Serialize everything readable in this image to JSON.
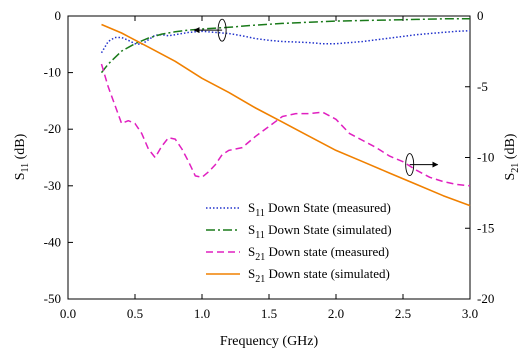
{
  "chart_data": {
    "type": "line",
    "xlabel": "Frequency (GHz)",
    "ylabel_left": {
      "main": "S",
      "sub": "11",
      "tail": " (dB)"
    },
    "ylabel_right": {
      "main": "S",
      "sub": "21",
      "tail": " (dB)"
    },
    "xlim": [
      0.0,
      3.0
    ],
    "ylim_left": [
      -50,
      0
    ],
    "ylim_right": [
      -20,
      0
    ],
    "x_ticks": [
      "0.0",
      "0.5",
      "1.0",
      "1.5",
      "2.0",
      "2.5",
      "3.0"
    ],
    "y_left_ticks": [
      "0",
      "-10",
      "-20",
      "-30",
      "-40",
      "-50"
    ],
    "y_right_ticks": [
      "0",
      "-5",
      "-10",
      "-15",
      "-20"
    ],
    "legend_position": "bottom-right",
    "series": [
      {
        "key": "s11m",
        "axis": "left",
        "color": "#2233cc",
        "style": "dotted",
        "legend": {
          "main": "S",
          "sub": "11",
          "tail": " Down State (measured)"
        },
        "x": [
          0.25,
          0.3,
          0.35,
          0.4,
          0.45,
          0.5,
          0.55,
          0.6,
          0.65,
          0.7,
          0.75,
          0.8,
          0.9,
          1.0,
          1.1,
          1.2,
          1.3,
          1.4,
          1.5,
          1.6,
          1.7,
          1.8,
          1.9,
          2.0,
          2.1,
          2.2,
          2.3,
          2.4,
          2.5,
          2.6,
          2.7,
          2.8,
          2.9,
          3.0
        ],
        "y": [
          -6.5,
          -4.5,
          -3.8,
          -3.8,
          -4.3,
          -4.9,
          -5.0,
          -4.2,
          -3.4,
          -3.3,
          -3.5,
          -3.3,
          -2.9,
          -2.7,
          -2.9,
          -3.1,
          -3.5,
          -4.0,
          -4.3,
          -4.5,
          -4.6,
          -4.7,
          -4.9,
          -4.9,
          -4.7,
          -4.5,
          -4.2,
          -3.9,
          -3.6,
          -3.3,
          -3.1,
          -2.9,
          -2.7,
          -2.6
        ]
      },
      {
        "key": "s11s",
        "axis": "left",
        "color": "#1a7a1a",
        "style": "dashdot",
        "legend": {
          "main": "S",
          "sub": "11",
          "tail": " Down State (simulated)"
        },
        "x": [
          0.25,
          0.3,
          0.4,
          0.5,
          0.6,
          0.7,
          0.8,
          0.9,
          1.0,
          1.2,
          1.4,
          1.6,
          1.8,
          2.0,
          2.2,
          2.4,
          2.6,
          2.8,
          3.0
        ],
        "y": [
          -10.0,
          -8.5,
          -6.2,
          -4.9,
          -3.9,
          -3.2,
          -2.8,
          -2.5,
          -2.3,
          -2.0,
          -1.6,
          -1.3,
          -1.1,
          -0.9,
          -0.8,
          -0.7,
          -0.6,
          -0.5,
          -0.5
        ]
      },
      {
        "key": "s21m",
        "axis": "right",
        "color": "#e020c0",
        "style": "dashed",
        "legend": {
          "main": "S",
          "sub": "21",
          "tail": " Down state (measured)"
        },
        "x": [
          0.25,
          0.3,
          0.35,
          0.4,
          0.45,
          0.5,
          0.55,
          0.6,
          0.65,
          0.7,
          0.75,
          0.8,
          0.85,
          0.9,
          0.95,
          1.0,
          1.05,
          1.1,
          1.15,
          1.2,
          1.3,
          1.4,
          1.5,
          1.6,
          1.7,
          1.8,
          1.9,
          2.0,
          2.1,
          2.2,
          2.3,
          2.4,
          2.5,
          2.6,
          2.7,
          2.8,
          2.9,
          3.0
        ],
        "y": [
          -3.4,
          -5.0,
          -6.3,
          -7.6,
          -7.4,
          -7.6,
          -8.3,
          -9.4,
          -10.0,
          -9.2,
          -8.6,
          -8.7,
          -9.4,
          -10.3,
          -11.3,
          -11.4,
          -11.0,
          -10.5,
          -9.8,
          -9.5,
          -9.3,
          -8.5,
          -7.8,
          -7.1,
          -6.9,
          -6.9,
          -6.8,
          -7.3,
          -8.3,
          -8.8,
          -9.3,
          -9.9,
          -10.3,
          -10.9,
          -11.4,
          -11.7,
          -11.9,
          -12.0
        ]
      },
      {
        "key": "s21s",
        "axis": "right",
        "color": "#f08000",
        "style": "solid",
        "legend": {
          "main": "S",
          "sub": "21",
          "tail": " Down state (simulated)"
        },
        "x": [
          0.25,
          0.4,
          0.5,
          0.6,
          0.7,
          0.8,
          1.0,
          1.2,
          1.4,
          1.6,
          1.8,
          2.0,
          2.2,
          2.4,
          2.6,
          2.8,
          3.0
        ],
        "y": [
          -0.6,
          -1.2,
          -1.7,
          -2.2,
          -2.7,
          -3.2,
          -4.4,
          -5.4,
          -6.5,
          -7.5,
          -8.5,
          -9.5,
          -10.3,
          -11.1,
          -11.9,
          -12.7,
          -13.4
        ]
      }
    ],
    "annotations": [
      {
        "series": "s11s",
        "arrow": "left",
        "x": 1.15,
        "y": -2.5,
        "axis": "left"
      },
      {
        "series": "s21m",
        "arrow": "right",
        "x": 2.55,
        "y": -10.5,
        "axis": "right"
      }
    ]
  }
}
